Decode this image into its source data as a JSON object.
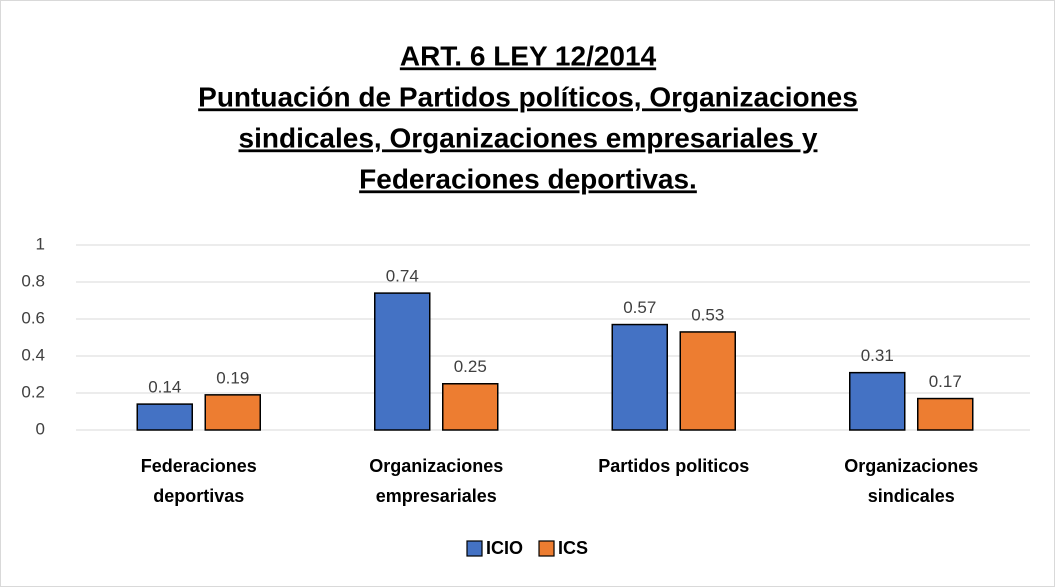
{
  "chart_data": {
    "type": "bar",
    "title": [
      "ART. 6 LEY 12/2014",
      "Puntuación de Partidos políticos, Organizaciones",
      "sindicales, Organizaciones empresariales y",
      "Federaciones deportivas."
    ],
    "categories": [
      [
        "Federaciones",
        "deportivas"
      ],
      [
        "Organizaciones",
        "empresariales"
      ],
      [
        "Partidos politicos"
      ],
      [
        "Organizaciones",
        "sindicales"
      ]
    ],
    "series": [
      {
        "name": "ICIO",
        "color": "#4472c4",
        "values": [
          0.14,
          0.74,
          0.57,
          0.31
        ]
      },
      {
        "name": "ICS",
        "color": "#ed7d31",
        "values": [
          0.19,
          0.25,
          0.53,
          0.17
        ]
      }
    ],
    "ylim": [
      0,
      1
    ],
    "yticks": [
      0,
      0.2,
      0.4,
      0.6,
      0.8,
      1
    ],
    "grid": true,
    "legend": "bottom"
  }
}
